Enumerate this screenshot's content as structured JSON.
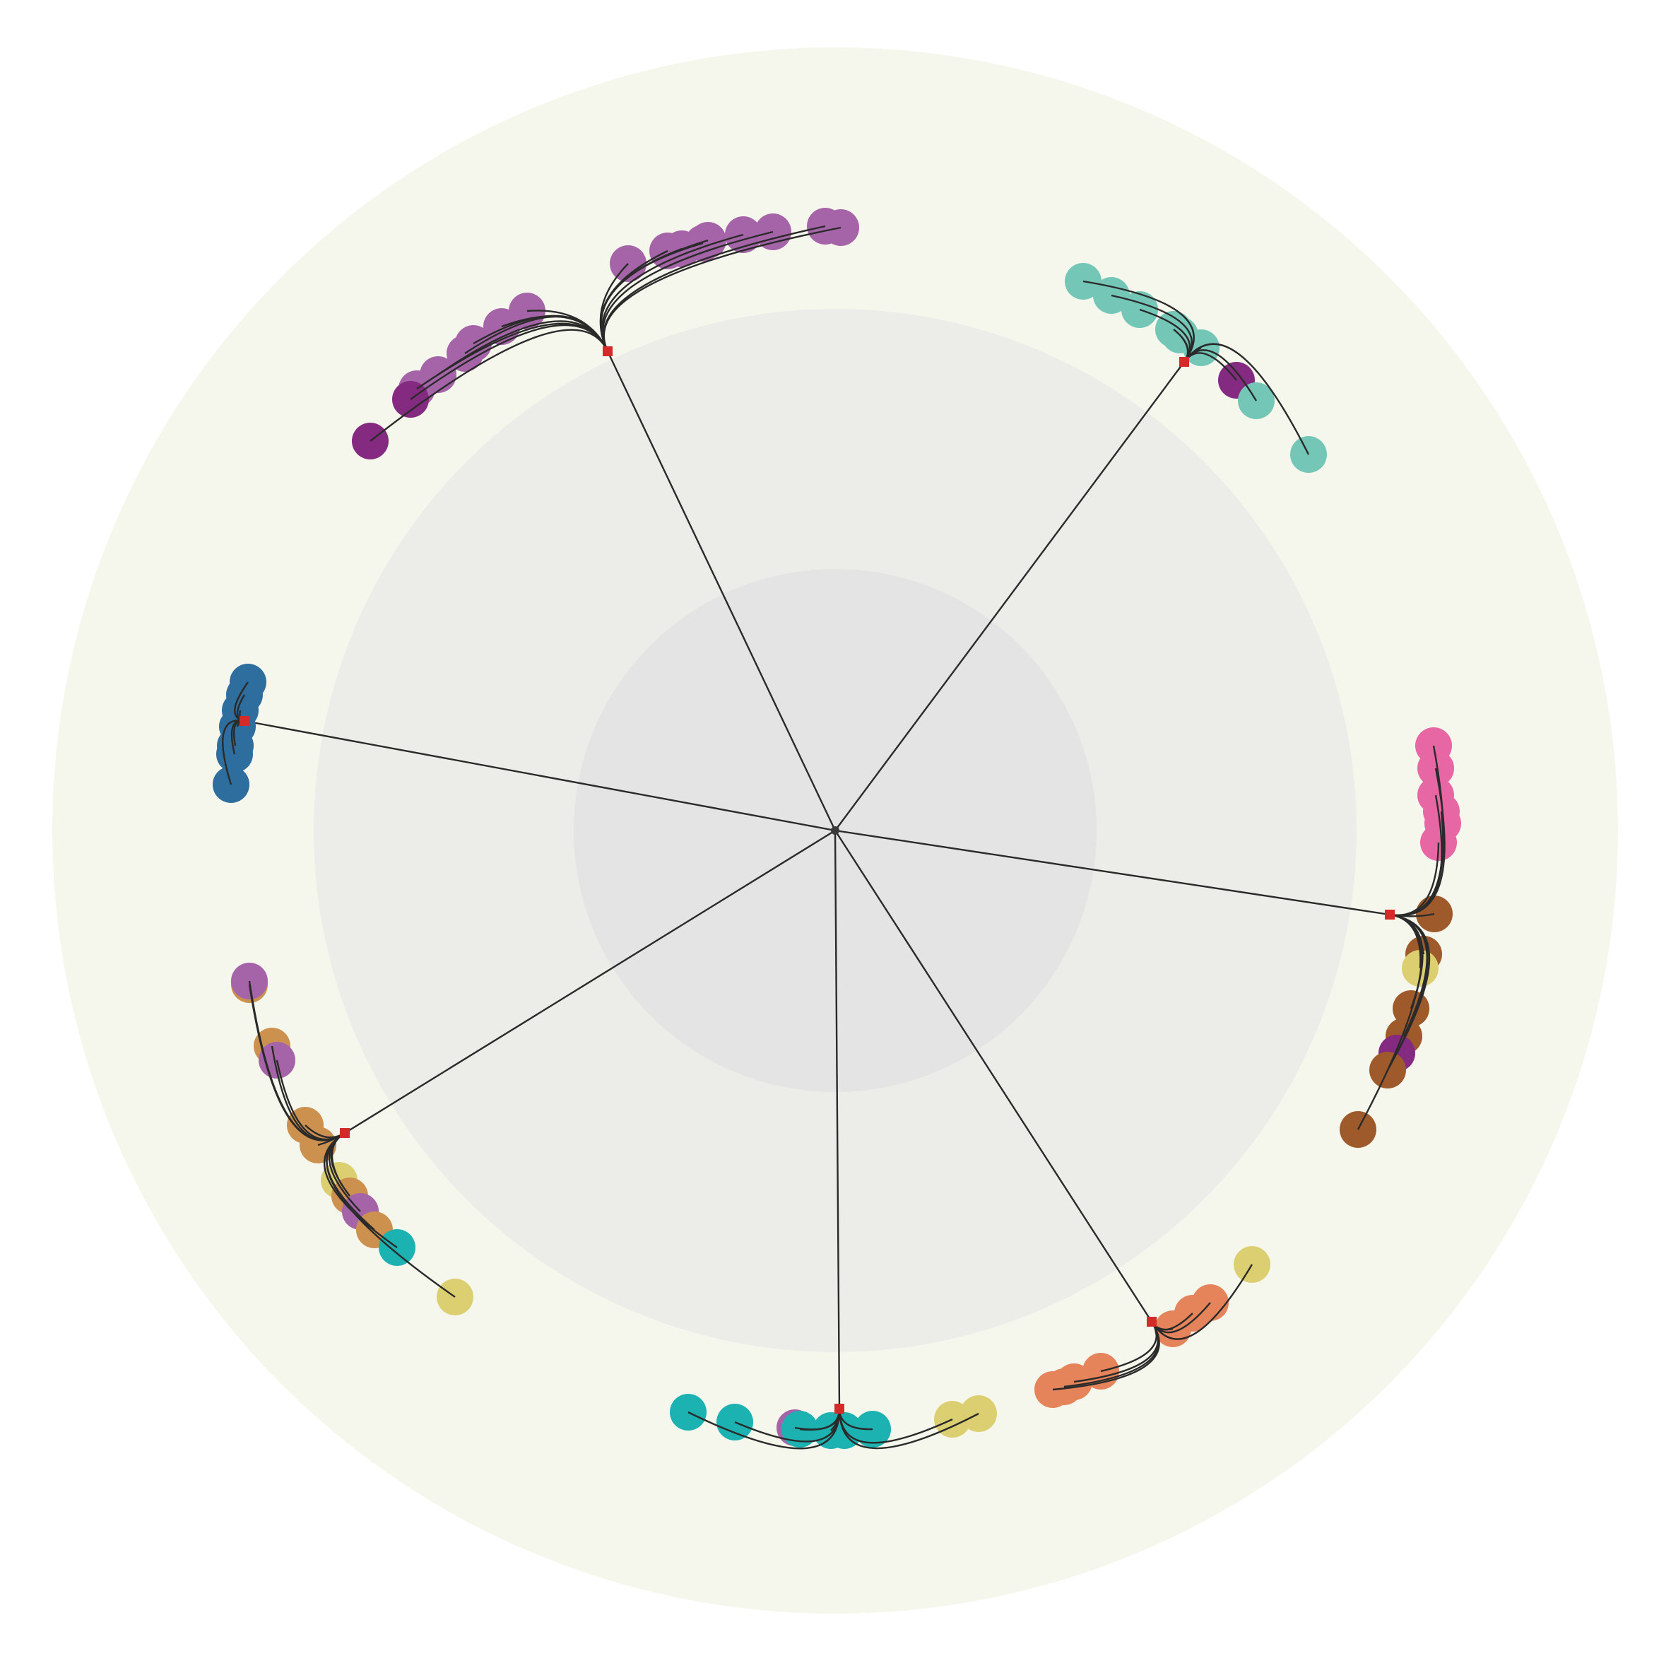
{
  "colors": {
    "background": "#ffffff",
    "ring_outer": "#f6f7ec",
    "ring_middle": "#ecede8",
    "ring_inner": "#e3e4e3",
    "link": "#2a2a2a",
    "root_node": "#3a3a3a",
    "cluster_hub": "#d42a2a"
  },
  "palette": {
    "purple": "#a564a8",
    "dark_purple": "#842a80",
    "teal": "#74c6b7",
    "blue": "#2e6e9e",
    "pink": "#e667a4",
    "brown": "#9e5a2a",
    "yellow": "#dccf72",
    "tan": "#cc904f",
    "cyan": "#1cb2b1",
    "salmon": "#e5835b"
  },
  "clusters": [
    {
      "id": "cluster-top",
      "leaves": [
        {
          "color": "purple"
        },
        {
          "color": "purple"
        },
        {
          "color": "purple"
        },
        {
          "color": "purple"
        },
        {
          "color": "purple"
        },
        {
          "color": "purple"
        },
        {
          "color": "purple"
        },
        {
          "color": "purple"
        },
        {
          "color": "purple"
        },
        {
          "color": "purple"
        },
        {
          "color": "purple"
        },
        {
          "color": "purple"
        },
        {
          "color": "purple"
        },
        {
          "color": "purple"
        },
        {
          "color": "purple"
        },
        {
          "color": "dark_purple"
        },
        {
          "color": "dark_purple"
        }
      ]
    },
    {
      "id": "cluster-top-right",
      "leaves": [
        {
          "color": "teal"
        },
        {
          "color": "teal"
        },
        {
          "color": "teal"
        },
        {
          "color": "teal"
        },
        {
          "color": "teal"
        },
        {
          "color": "teal"
        },
        {
          "color": "dark_purple"
        },
        {
          "color": "teal"
        },
        {
          "color": "teal"
        }
      ]
    },
    {
      "id": "cluster-right",
      "leaves": [
        {
          "color": "pink"
        },
        {
          "color": "pink"
        },
        {
          "color": "pink"
        },
        {
          "color": "pink"
        },
        {
          "color": "pink"
        },
        {
          "color": "pink"
        },
        {
          "color": "brown"
        },
        {
          "color": "brown"
        },
        {
          "color": "yellow"
        },
        {
          "color": "brown"
        },
        {
          "color": "brown"
        },
        {
          "color": "dark_purple"
        },
        {
          "color": "brown"
        },
        {
          "color": "brown"
        }
      ]
    },
    {
      "id": "cluster-bottom-right",
      "leaves": [
        {
          "color": "yellow"
        },
        {
          "color": "salmon"
        },
        {
          "color": "salmon"
        },
        {
          "color": "salmon"
        },
        {
          "color": "salmon"
        },
        {
          "color": "salmon"
        },
        {
          "color": "salmon"
        },
        {
          "color": "salmon"
        }
      ]
    },
    {
      "id": "cluster-bottom",
      "leaves": [
        {
          "color": "cyan"
        },
        {
          "color": "cyan"
        },
        {
          "color": "purple"
        },
        {
          "color": "cyan"
        },
        {
          "color": "cyan"
        },
        {
          "color": "cyan"
        },
        {
          "color": "cyan"
        },
        {
          "color": "yellow"
        },
        {
          "color": "yellow"
        }
      ]
    },
    {
      "id": "cluster-bottom-left",
      "leaves": [
        {
          "color": "tan"
        },
        {
          "color": "purple"
        },
        {
          "color": "tan"
        },
        {
          "color": "purple"
        },
        {
          "color": "tan"
        },
        {
          "color": "tan"
        },
        {
          "color": "yellow"
        },
        {
          "color": "tan"
        },
        {
          "color": "purple"
        },
        {
          "color": "tan"
        },
        {
          "color": "cyan"
        },
        {
          "color": "yellow"
        }
      ]
    },
    {
      "id": "cluster-left",
      "leaves": [
        {
          "color": "blue"
        },
        {
          "color": "blue"
        },
        {
          "color": "blue"
        },
        {
          "color": "blue"
        },
        {
          "color": "blue"
        },
        {
          "color": "blue"
        },
        {
          "color": "blue"
        }
      ]
    }
  ]
}
